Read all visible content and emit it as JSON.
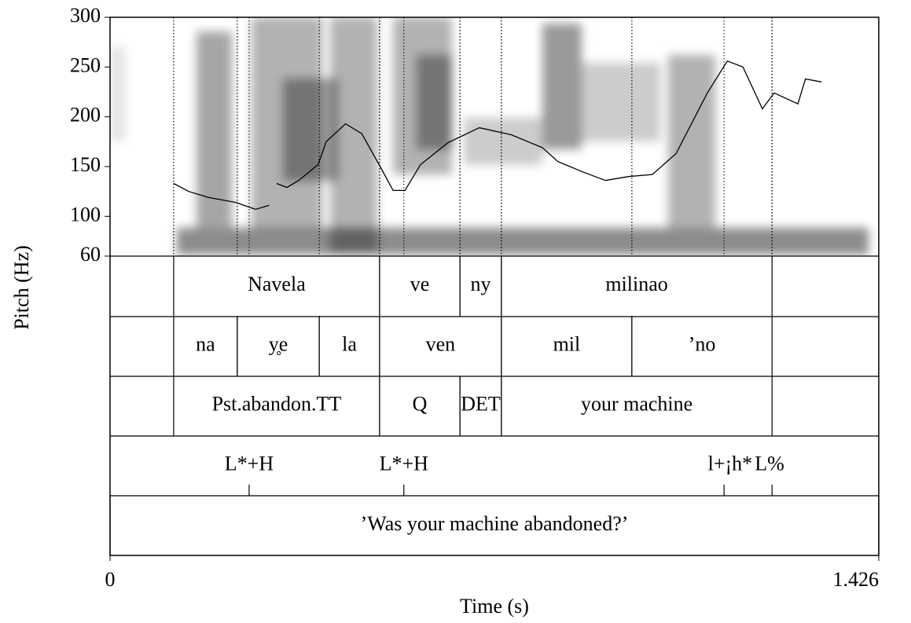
{
  "chart_data": {
    "type": "line",
    "y_label": "Pitch (Hz)",
    "x_label": "Time (s)",
    "xlim": [
      0,
      1.426
    ],
    "xticks": [
      0,
      1.426
    ],
    "ylim": [
      60,
      300
    ],
    "yticks": [
      60,
      100,
      150,
      200,
      250,
      300
    ],
    "x": [
      0.118,
      0.146,
      0.182,
      0.233,
      0.27,
      0.295,
      null,
      0.309,
      0.328,
      0.35,
      0.386,
      0.401,
      0.437,
      0.467,
      0.503,
      0.525,
      0.547,
      0.576,
      0.627,
      0.685,
      0.744,
      0.802,
      0.831,
      0.875,
      0.919,
      0.962,
      1.006,
      1.05,
      1.108,
      1.145,
      1.174,
      1.21,
      1.232,
      1.276,
      1.29,
      1.32
    ],
    "series": [
      {
        "color": "#000000",
        "values": [
          133,
          125,
          119,
          114,
          107,
          111,
          null,
          133,
          129,
          136,
          152,
          175,
          193,
          183,
          148,
          126,
          126,
          152,
          174,
          189,
          182,
          169,
          155,
          145,
          136,
          140,
          142,
          163,
          224,
          256,
          250,
          208,
          224,
          213,
          238,
          235
        ]
      }
    ],
    "tiers": [
      {
        "intervals": [
          {
            "start": 0.118,
            "end": 0.5,
            "text": "Navela"
          },
          {
            "start": 0.5,
            "end": 0.649,
            "text": "ve"
          },
          {
            "start": 0.649,
            "end": 0.726,
            "text": "ny"
          },
          {
            "start": 0.726,
            "end": 1.228,
            "text": "milinao"
          }
        ]
      },
      {
        "intervals": [
          {
            "start": 0.118,
            "end": 0.236,
            "text": "na"
          },
          {
            "start": 0.236,
            "end": 0.388,
            "text": "y̥e"
          },
          {
            "start": 0.388,
            "end": 0.5,
            "text": "la"
          },
          {
            "start": 0.5,
            "end": 0.726,
            "text": "ven"
          },
          {
            "start": 0.726,
            "end": 0.968,
            "text": "mil"
          },
          {
            "start": 0.968,
            "end": 1.228,
            "text": "’no"
          }
        ]
      },
      {
        "intervals": [
          {
            "start": 0.118,
            "end": 0.5,
            "text": "Pst.abandon.TT"
          },
          {
            "start": 0.5,
            "end": 0.649,
            "text": "Q"
          },
          {
            "start": 0.649,
            "end": 0.726,
            "text": "DET"
          },
          {
            "start": 0.726,
            "end": 1.228,
            "text": "your machine"
          }
        ]
      },
      {
        "points": [
          {
            "time": 0.258,
            "text": "L*+H"
          },
          {
            "time": 0.545,
            "text": "L*+H"
          },
          {
            "time": 1.139,
            "text": "l+¡h*"
          },
          {
            "time": 1.228,
            "text": "L%"
          }
        ]
      },
      {
        "intervals": [
          {
            "start": 0,
            "end": 1.426,
            "text": "’Was your machine abandoned?’"
          }
        ]
      }
    ]
  }
}
